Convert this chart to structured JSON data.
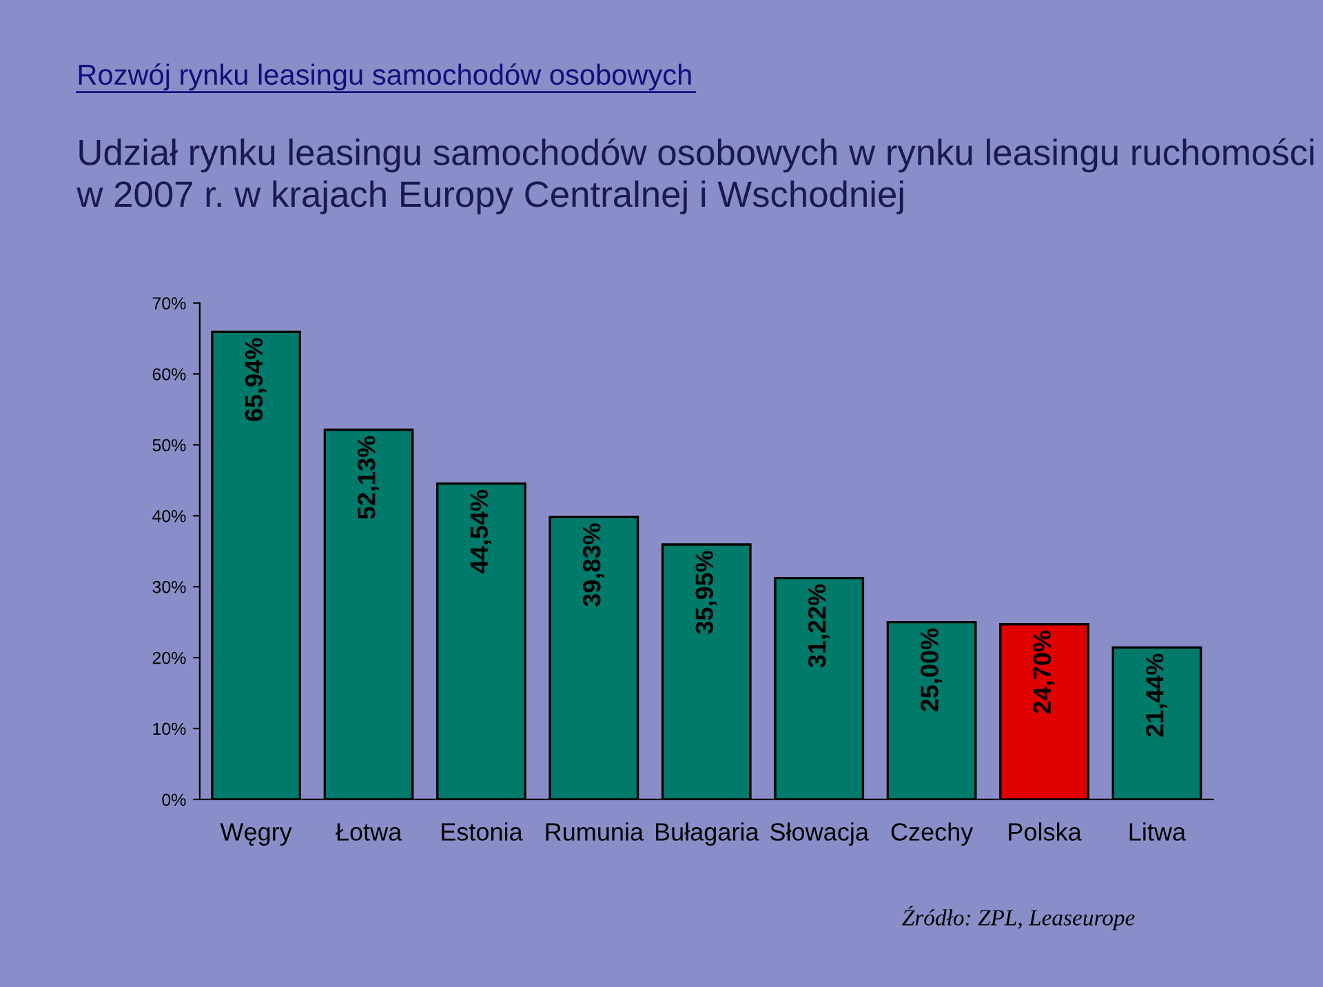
{
  "chart_data": {
    "type": "bar",
    "title": "Rozwój rynku leasingu samochodów osobowych",
    "subtitle": "Udział rynku leasingu samochodów osobowych w rynku leasingu ruchomości w 2007 r. w krajach Europy Centralnej i Wschodniej",
    "categories": [
      "Węgry",
      "Łotwa",
      "Estonia",
      "Rumunia",
      "Bułagaria",
      "Słowacja",
      "Czechy",
      "Polska",
      "Litwa"
    ],
    "values": [
      65.94,
      52.13,
      44.54,
      39.83,
      35.95,
      31.22,
      25.0,
      24.7,
      21.44
    ],
    "colors": [
      "#007a6a",
      "#007a6a",
      "#007a6a",
      "#007a6a",
      "#007a6a",
      "#007a6a",
      "#007a6a",
      "#e00000",
      "#007a6a"
    ],
    "value_labels": [
      "65,94%",
      "52,13%",
      "44,54%",
      "39,83%",
      "35,95%",
      "31,22%",
      "25,00%",
      "24,70%",
      "21,44%"
    ],
    "ylim": [
      0,
      70
    ],
    "yticks": [
      {
        "value": 0,
        "label": "0%"
      },
      {
        "value": 10,
        "label": "10%"
      },
      {
        "value": 20,
        "label": "20%"
      },
      {
        "value": 30,
        "label": "30%"
      },
      {
        "value": 40,
        "label": "40%"
      },
      {
        "value": 50,
        "label": "50%"
      },
      {
        "value": 60,
        "label": "60%"
      },
      {
        "value": 70,
        "label": "70%"
      }
    ],
    "annotations": [
      "Źródło: ZPL, Leaseurope"
    ]
  }
}
